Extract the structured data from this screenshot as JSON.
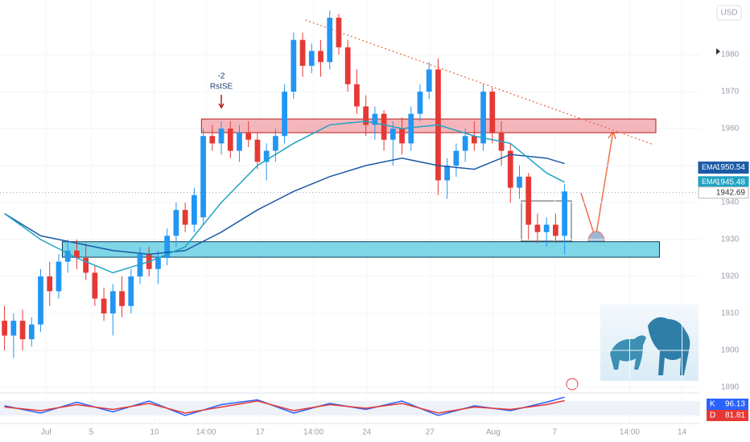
{
  "chart_data": {
    "type": "candlestick",
    "currency": "USD",
    "up_color": "#2196f3",
    "down_color": "#e53935",
    "ylim": [
      1888.9,
      1994.8
    ],
    "yticks": [
      1890,
      1900,
      1910,
      1920,
      1930,
      1940,
      1950,
      1960,
      1970,
      1980
    ],
    "xlim": [
      -0.5,
      77
    ],
    "xticks": [
      {
        "value": 4.6,
        "label": "Jul"
      },
      {
        "value": 9.6,
        "label": "5"
      },
      {
        "value": 16.6,
        "label": "10"
      },
      {
        "value": 22.3,
        "label": "14:00"
      },
      {
        "value": 28.3,
        "label": "17"
      },
      {
        "value": 34.2,
        "label": "14:00"
      },
      {
        "value": 40.1,
        "label": "24"
      },
      {
        "value": 47.1,
        "label": "27"
      },
      {
        "value": 54.1,
        "label": "Aug"
      },
      {
        "value": 60.9,
        "label": "7"
      },
      {
        "value": 69.2,
        "label": "14:00"
      },
      {
        "value": 75.0,
        "label": "14"
      }
    ],
    "ohlc": [
      [
        1908,
        1912,
        1900,
        1904
      ],
      [
        1904,
        1910,
        1898,
        1908
      ],
      [
        1908,
        1911,
        1900,
        1903
      ],
      [
        1903,
        1909,
        1901,
        1907
      ],
      [
        1907,
        1922,
        1905,
        1920
      ],
      [
        1920,
        1924,
        1912,
        1916
      ],
      [
        1916,
        1926,
        1914,
        1924
      ],
      [
        1924,
        1930,
        1921,
        1927
      ],
      [
        1927,
        1930,
        1922,
        1925
      ],
      [
        1925,
        1929,
        1919,
        1921
      ],
      [
        1921,
        1923,
        1912,
        1914
      ],
      [
        1914,
        1917,
        1908,
        1910
      ],
      [
        1910,
        1918,
        1904,
        1916
      ],
      [
        1916,
        1920,
        1909,
        1912
      ],
      [
        1912,
        1922,
        1910,
        1920
      ],
      [
        1920,
        1928,
        1918,
        1926
      ],
      [
        1926,
        1928,
        1920,
        1922
      ],
      [
        1922,
        1927,
        1918,
        1925
      ],
      [
        1925,
        1933,
        1923,
        1931
      ],
      [
        1931,
        1940,
        1928,
        1938
      ],
      [
        1938,
        1940,
        1932,
        1934
      ],
      [
        1934,
        1944,
        1932,
        1942
      ],
      [
        1936,
        1960,
        1934,
        1958
      ],
      [
        1958,
        1961,
        1954,
        1956
      ],
      [
        1956,
        1962,
        1953,
        1960
      ],
      [
        1960,
        1962,
        1952,
        1954
      ],
      [
        1954,
        1961,
        1951,
        1959
      ],
      [
        1959,
        1962,
        1955,
        1957
      ],
      [
        1957,
        1959,
        1949,
        1951
      ],
      [
        1951,
        1956,
        1946,
        1954
      ],
      [
        1954,
        1960,
        1951,
        1958
      ],
      [
        1958,
        1972,
        1956,
        1970
      ],
      [
        1970,
        1986,
        1968,
        1984
      ],
      [
        1984,
        1986,
        1974,
        1977
      ],
      [
        1977,
        1983,
        1975,
        1981
      ],
      [
        1981,
        1984,
        1974,
        1978
      ],
      [
        1978,
        1992,
        1976,
        1990
      ],
      [
        1990,
        1991,
        1980,
        1982
      ],
      [
        1982,
        1984,
        1970,
        1972
      ],
      [
        1972,
        1976,
        1964,
        1966
      ],
      [
        1966,
        1969,
        1958,
        1961
      ],
      [
        1961,
        1966,
        1957,
        1964
      ],
      [
        1964,
        1965,
        1954,
        1957
      ],
      [
        1957,
        1962,
        1950,
        1960
      ],
      [
        1960,
        1963,
        1953,
        1956
      ],
      [
        1956,
        1966,
        1954,
        1964
      ],
      [
        1964,
        1972,
        1962,
        1970
      ],
      [
        1970,
        1978,
        1968,
        1976
      ],
      [
        1976,
        1979,
        1942,
        1946
      ],
      [
        1946,
        1952,
        1941,
        1950
      ],
      [
        1950,
        1956,
        1947,
        1954
      ],
      [
        1954,
        1960,
        1951,
        1958
      ],
      [
        1958,
        1962,
        1954,
        1956
      ],
      [
        1956,
        1972,
        1954,
        1970
      ],
      [
        1970,
        1971,
        1956,
        1959
      ],
      [
        1959,
        1962,
        1950,
        1954
      ],
      [
        1954,
        1956,
        1940,
        1944
      ],
      [
        1944,
        1950,
        1941,
        1947
      ],
      [
        1947,
        1948,
        1930,
        1934
      ],
      [
        1934,
        1937,
        1929,
        1932
      ],
      [
        1932,
        1936,
        1928,
        1934
      ],
      [
        1934,
        1937,
        1929,
        1931
      ],
      [
        1931,
        1945,
        1926,
        1943
      ]
    ],
    "series": [
      {
        "name": "EMA",
        "color": "#1c5aa6",
        "x": [
          0,
          4,
          8,
          12,
          16,
          20,
          24,
          28,
          32,
          36,
          40,
          44,
          48,
          52,
          56,
          60,
          62
        ],
        "values": [
          1937,
          1931,
          1929,
          1927,
          1926,
          1927,
          1932,
          1938,
          1943,
          1947,
          1950,
          1952,
          1950,
          1949,
          1953,
          1952,
          1950.54
        ]
      },
      {
        "name": "EMA",
        "color": "#1fa3c4",
        "x": [
          0,
          4,
          8,
          12,
          16,
          20,
          24,
          28,
          32,
          36,
          40,
          44,
          48,
          52,
          56,
          60,
          62
        ],
        "values": [
          1937,
          1930,
          1925,
          1921,
          1924,
          1928,
          1940,
          1950,
          1956,
          1961,
          1962,
          1960,
          1961,
          1958,
          1956,
          1948,
          1945.48
        ]
      }
    ],
    "last_price": 1942.69,
    "zones": [
      {
        "top": 1962.6,
        "bottom": 1958.9,
        "x0": 21.8,
        "x1": 72.1,
        "color": "#f4b6bb",
        "stroke": "#b71c1c"
      },
      {
        "top": 1929.4,
        "bottom": 1925.2,
        "x0": 6.4,
        "x1": 72.5,
        "color": "#7fd6e6",
        "stroke": "#0d3c5a"
      }
    ],
    "trendline": {
      "x": [
        33.3,
        71.8
      ],
      "values": [
        1989.4,
        1955.7
      ],
      "color": "#ef6c4a"
    },
    "annotation": {
      "text": [
        "-2",
        "RsISE"
      ],
      "x": 24
    }
  },
  "stoch": {
    "ylim": [
      0,
      100
    ],
    "x": [
      0,
      4,
      8,
      12,
      16,
      20,
      24,
      28,
      32,
      36,
      40,
      44,
      48,
      52,
      56,
      60,
      62
    ],
    "k": {
      "name": "K",
      "color": "#2962ff",
      "values": [
        60,
        30,
        75,
        35,
        80,
        20,
        65,
        85,
        30,
        70,
        45,
        80,
        20,
        60,
        40,
        75,
        96.13
      ]
    },
    "d": {
      "name": "D",
      "color": "#e53935",
      "values": [
        55,
        40,
        65,
        45,
        70,
        30,
        55,
        80,
        40,
        65,
        50,
        70,
        30,
        55,
        45,
        65,
        81.81
      ]
    }
  }
}
